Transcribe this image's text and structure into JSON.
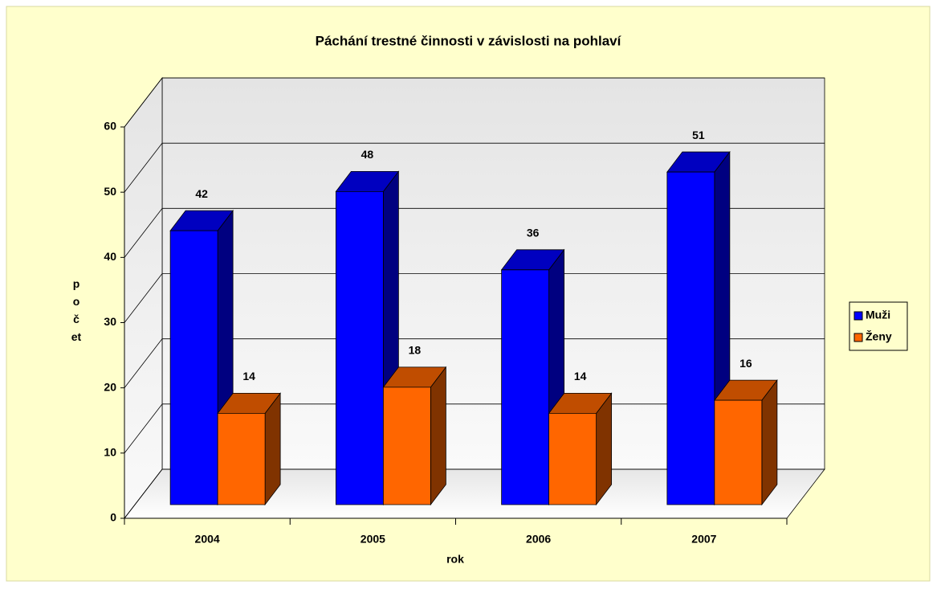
{
  "chart_data": {
    "type": "bar3d",
    "title": "Páchání trestné činnosti v závislosti na pohlaví",
    "xlabel": "rok",
    "ylabel": "počet",
    "categories": [
      "2004",
      "2005",
      "2006",
      "2007"
    ],
    "series": [
      {
        "name": "Muži",
        "color": "#0000ff",
        "values": [
          42,
          48,
          36,
          51
        ]
      },
      {
        "name": "Ženy",
        "color": "#ff6600",
        "values": [
          14,
          18,
          14,
          16
        ]
      }
    ],
    "ylim": [
      0,
      60
    ],
    "yticks": [
      0,
      10,
      20,
      30,
      40,
      50,
      60
    ],
    "grid": true,
    "legend": "right"
  }
}
